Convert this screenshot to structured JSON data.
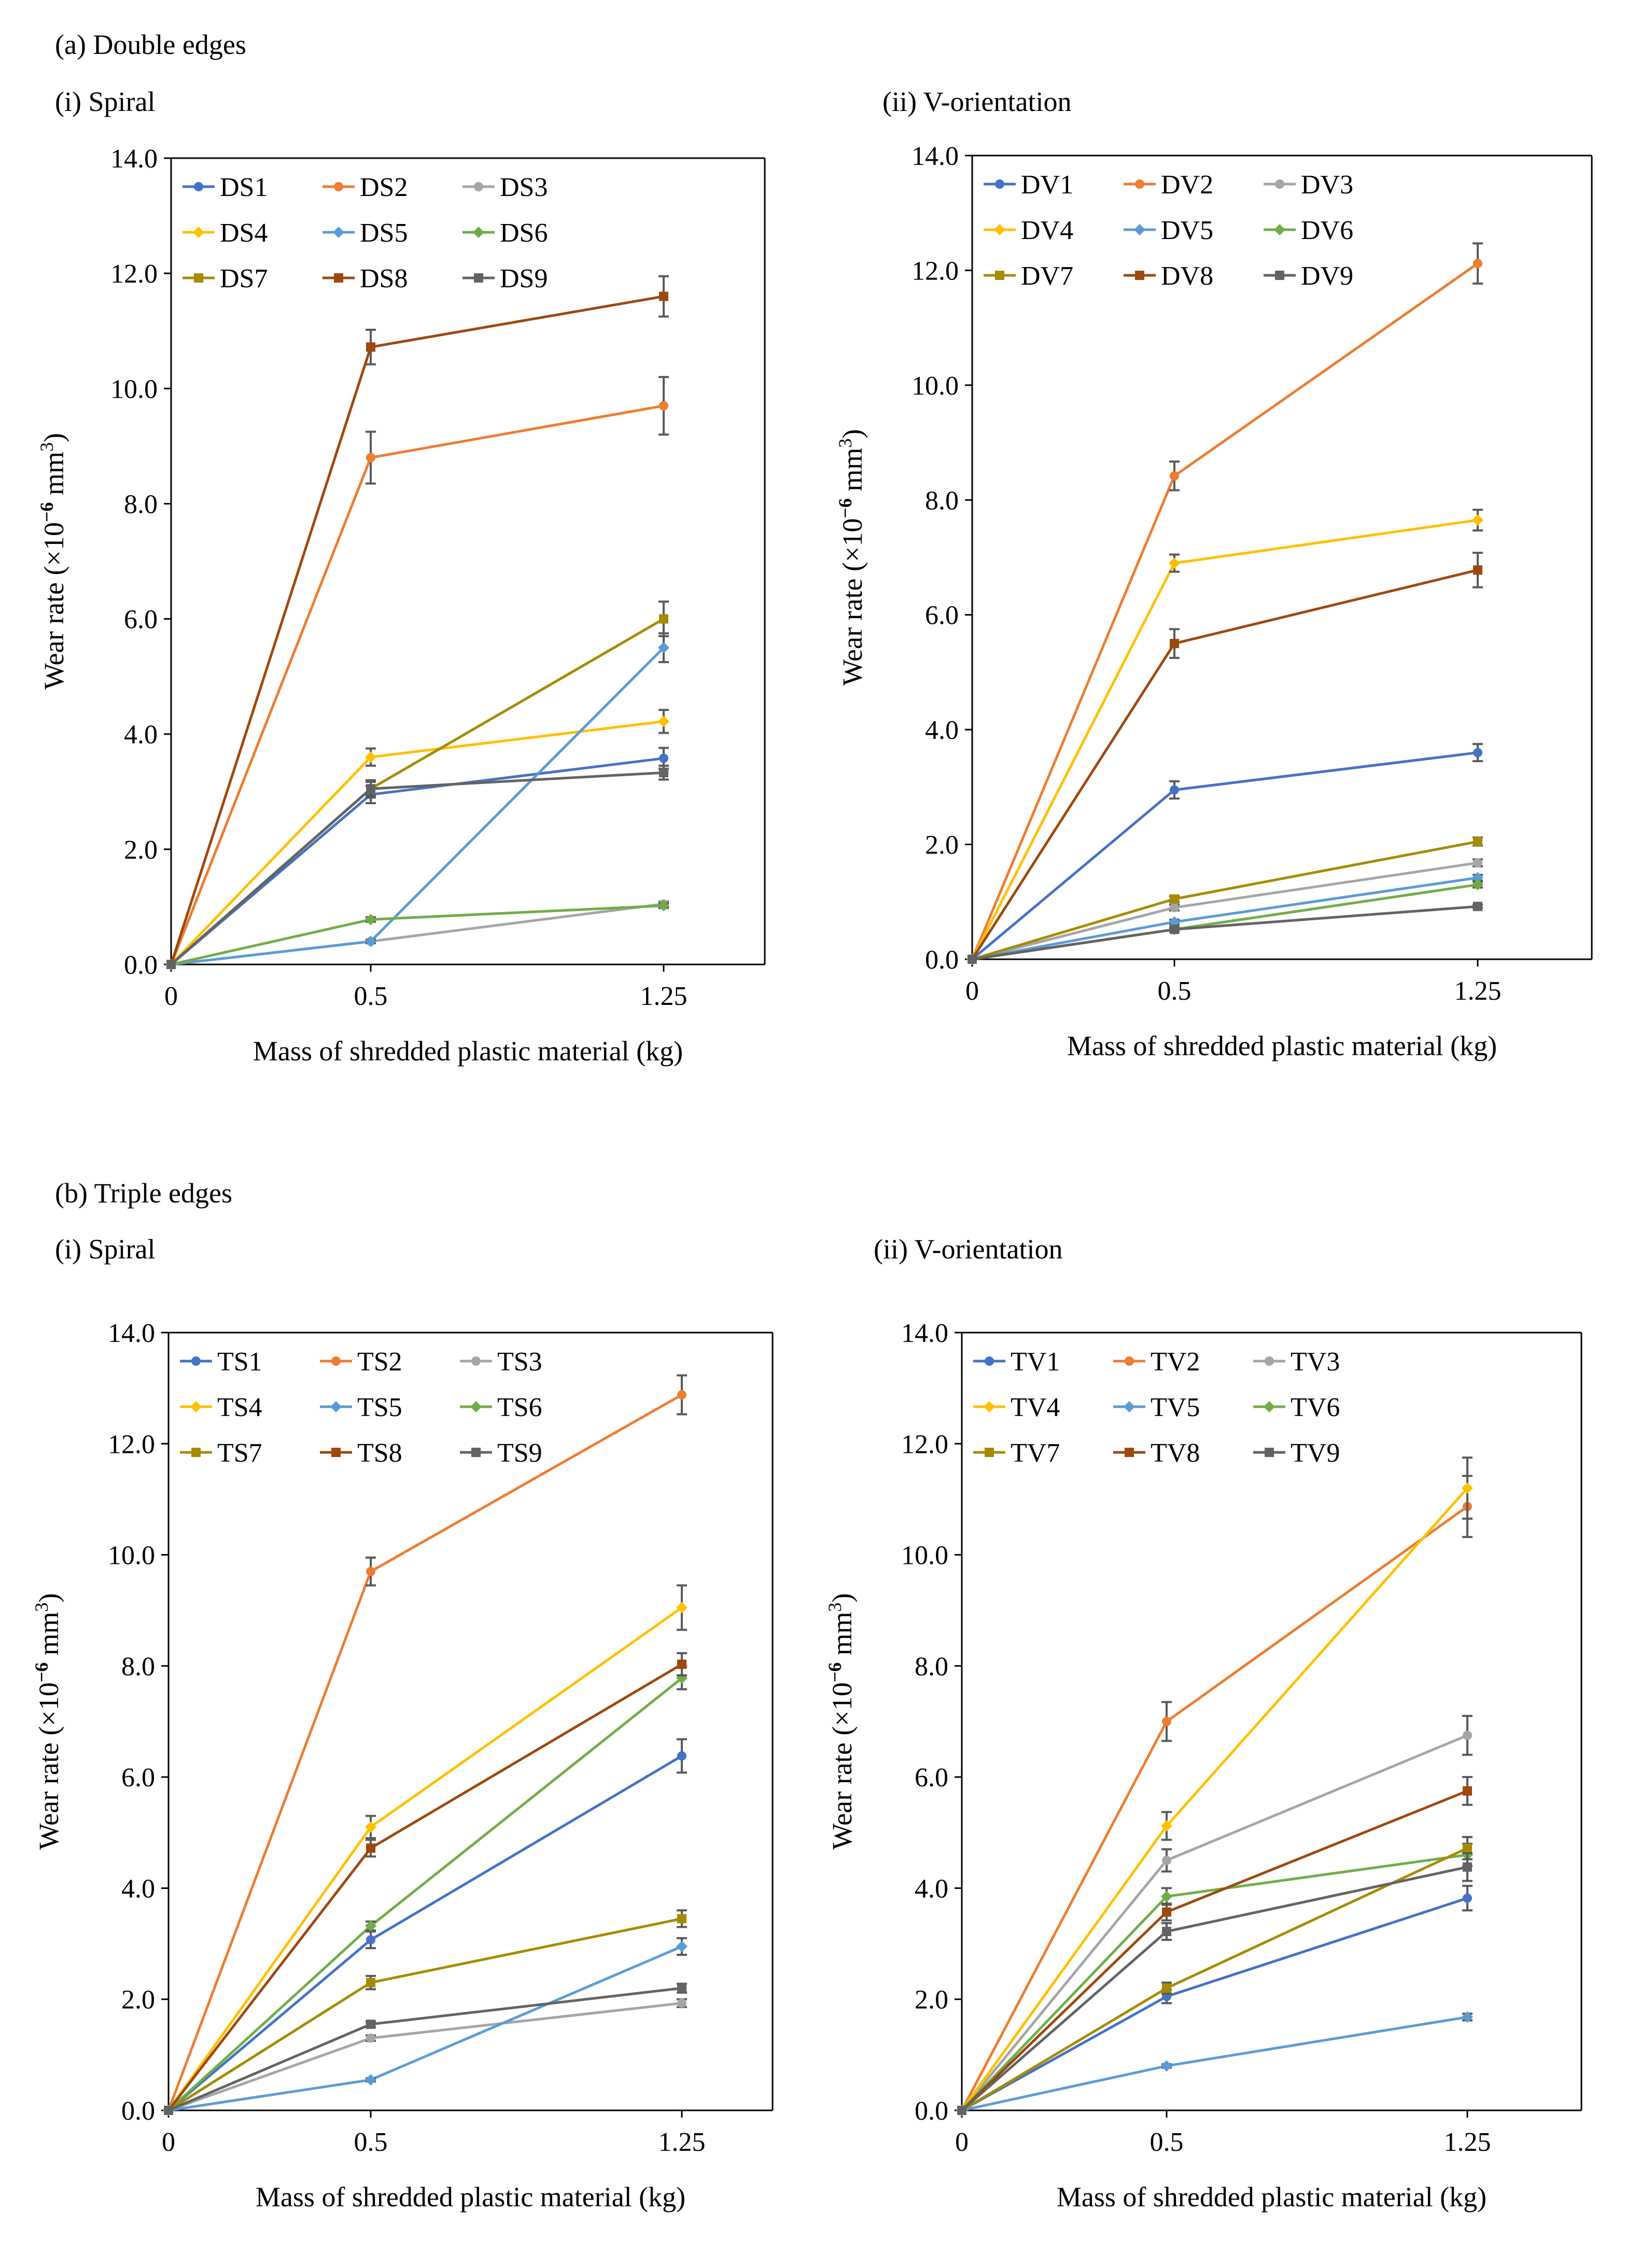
{
  "sections": {
    "a": "(a) Double edges",
    "b": "(b) Triple edges"
  },
  "panels": {
    "a_i": "(i) Spiral",
    "a_ii": "(ii) V-orientation",
    "b_i": "(i) Spiral",
    "b_ii": "(ii) V-orientation"
  },
  "colors": {
    "s1": "#4472C4",
    "s2": "#ED7D31",
    "s3": "#A5A5A5",
    "s4": "#FFC000",
    "s5": "#5B9BD5",
    "s6": "#70AD47",
    "s7": "#A58B00",
    "s8": "#9E480E",
    "s9": "#636363",
    "errorbar": "#595959"
  },
  "chart_data": [
    {
      "id": "ds",
      "type": "line",
      "categories": [
        "0",
        "0.5",
        "1.25"
      ],
      "xlabel": "Mass of shredded plastic material (kg)",
      "ylabel": "Wear rate (×10",
      "ylabel_sup": "−6",
      "ylabel_unit": " mm",
      "ylabel_sup2": "3",
      "ylabel_end": ")",
      "ylim": [
        0,
        14
      ],
      "yticks": [
        "0.0",
        "2.0",
        "4.0",
        "6.0",
        "8.0",
        "10.0",
        "12.0",
        "14.0"
      ],
      "legend_position": "top-left",
      "series": [
        {
          "name": "DS1",
          "values": [
            0,
            2.95,
            3.58
          ],
          "errors": [
            0,
            0.15,
            0.18
          ],
          "marker": "circle"
        },
        {
          "name": "DS2",
          "values": [
            0,
            8.8,
            9.7
          ],
          "errors": [
            0,
            0.45,
            0.5
          ],
          "marker": "circle"
        },
        {
          "name": "DS3",
          "values": [
            0,
            0.4,
            1.05
          ],
          "errors": [
            0,
            0.03,
            0.04
          ],
          "marker": "circle"
        },
        {
          "name": "DS4",
          "values": [
            0,
            3.6,
            4.22
          ],
          "errors": [
            0,
            0.15,
            0.2
          ],
          "marker": "diamond"
        },
        {
          "name": "DS5",
          "values": [
            0,
            0.4,
            5.5
          ],
          "errors": [
            0,
            0.03,
            0.25
          ],
          "marker": "diamond"
        },
        {
          "name": "DS6",
          "values": [
            0,
            0.78,
            1.02
          ],
          "errors": [
            0,
            0.04,
            0.04
          ],
          "marker": "diamond"
        },
        {
          "name": "DS7",
          "values": [
            0,
            3.05,
            6.0
          ],
          "errors": [
            0,
            0.15,
            0.3
          ],
          "marker": "square"
        },
        {
          "name": "DS8",
          "values": [
            0,
            10.72,
            11.6
          ],
          "errors": [
            0,
            0.3,
            0.35
          ],
          "marker": "square"
        },
        {
          "name": "DS9",
          "values": [
            0,
            3.05,
            3.33
          ],
          "errors": [
            0,
            0.12,
            0.12
          ],
          "marker": "square"
        }
      ]
    },
    {
      "id": "dv",
      "type": "line",
      "categories": [
        "0",
        "0.5",
        "1.25"
      ],
      "xlabel": "Mass of shredded plastic material (kg)",
      "ylabel": "Wear rate (×10",
      "ylabel_sup": "−6",
      "ylabel_unit": " mm",
      "ylabel_sup2": "3",
      "ylabel_end": ")",
      "ylim": [
        0,
        14
      ],
      "yticks": [
        "0.0",
        "2.0",
        "4.0",
        "6.0",
        "8.0",
        "10.0",
        "12.0",
        "14.0"
      ],
      "legend_position": "top-left",
      "series": [
        {
          "name": "DV1",
          "values": [
            0,
            2.95,
            3.6
          ],
          "errors": [
            0,
            0.15,
            0.15
          ],
          "marker": "circle"
        },
        {
          "name": "DV2",
          "values": [
            0,
            8.42,
            12.12
          ],
          "errors": [
            0,
            0.25,
            0.35
          ],
          "marker": "circle"
        },
        {
          "name": "DV3",
          "values": [
            0,
            0.9,
            1.68
          ],
          "errors": [
            0,
            0.05,
            0.06
          ],
          "marker": "circle"
        },
        {
          "name": "DV4",
          "values": [
            0,
            6.9,
            7.65
          ],
          "errors": [
            0,
            0.15,
            0.18
          ],
          "marker": "diamond"
        },
        {
          "name": "DV5",
          "values": [
            0,
            0.65,
            1.42
          ],
          "errors": [
            0,
            0.04,
            0.05
          ],
          "marker": "diamond"
        },
        {
          "name": "DV6",
          "values": [
            0,
            0.52,
            1.3
          ],
          "errors": [
            0,
            0.04,
            0.05
          ],
          "marker": "diamond"
        },
        {
          "name": "DV7",
          "values": [
            0,
            1.05,
            2.05
          ],
          "errors": [
            0,
            0.05,
            0.07
          ],
          "marker": "square"
        },
        {
          "name": "DV8",
          "values": [
            0,
            5.5,
            6.78
          ],
          "errors": [
            0,
            0.25,
            0.3
          ],
          "marker": "square"
        },
        {
          "name": "DV9",
          "values": [
            0,
            0.52,
            0.92
          ],
          "errors": [
            0,
            0.03,
            0.03
          ],
          "marker": "square"
        }
      ]
    },
    {
      "id": "ts",
      "type": "line",
      "categories": [
        "0",
        "0.5",
        "1.25"
      ],
      "xlabel": "Mass of shredded plastic material (kg)",
      "ylabel": "Wear rate (×10",
      "ylabel_sup": "−6",
      "ylabel_unit": " mm",
      "ylabel_sup2": "3",
      "ylabel_end": ")",
      "ylim": [
        0,
        14
      ],
      "yticks": [
        "0.0",
        "2.0",
        "4.0",
        "6.0",
        "8.0",
        "10.0",
        "12.0",
        "14.0"
      ],
      "legend_position": "top-left",
      "series": [
        {
          "name": "TS1",
          "values": [
            0,
            3.07,
            6.38
          ],
          "errors": [
            0,
            0.15,
            0.3
          ],
          "marker": "circle"
        },
        {
          "name": "TS2",
          "values": [
            0,
            9.7,
            12.88
          ],
          "errors": [
            0,
            0.25,
            0.35
          ],
          "marker": "circle"
        },
        {
          "name": "TS3",
          "values": [
            0,
            1.3,
            1.93
          ],
          "errors": [
            0,
            0.05,
            0.07
          ],
          "marker": "circle"
        },
        {
          "name": "TS4",
          "values": [
            0,
            5.1,
            9.05
          ],
          "errors": [
            0,
            0.2,
            0.4
          ],
          "marker": "diamond"
        },
        {
          "name": "TS5",
          "values": [
            0,
            0.55,
            2.95
          ],
          "errors": [
            0,
            0.03,
            0.15
          ],
          "marker": "diamond"
        },
        {
          "name": "TS6",
          "values": [
            0,
            3.32,
            7.78
          ],
          "errors": [
            0,
            0.08,
            0.2
          ],
          "marker": "diamond"
        },
        {
          "name": "TS7",
          "values": [
            0,
            2.3,
            3.45
          ],
          "errors": [
            0,
            0.12,
            0.15
          ],
          "marker": "square"
        },
        {
          "name": "TS8",
          "values": [
            0,
            4.72,
            8.03
          ],
          "errors": [
            0,
            0.15,
            0.2
          ],
          "marker": "square"
        },
        {
          "name": "TS9",
          "values": [
            0,
            1.55,
            2.2
          ],
          "errors": [
            0,
            0.05,
            0.08
          ],
          "marker": "square"
        }
      ]
    },
    {
      "id": "tv",
      "type": "line",
      "categories": [
        "0",
        "0.5",
        "1.25"
      ],
      "xlabel": "Mass of shredded plastic material (kg)",
      "ylabel": "Wear rate (×10",
      "ylabel_sup": "−6",
      "ylabel_unit": " mm",
      "ylabel_sup2": "3",
      "ylabel_end": ")",
      "ylim": [
        0,
        14
      ],
      "yticks": [
        "0.0",
        "2.0",
        "4.0",
        "6.0",
        "8.0",
        "10.0",
        "12.0",
        "14.0"
      ],
      "legend_position": "top-left",
      "series": [
        {
          "name": "TV1",
          "values": [
            0,
            2.05,
            3.82
          ],
          "errors": [
            0,
            0.12,
            0.22
          ],
          "marker": "circle"
        },
        {
          "name": "TV2",
          "values": [
            0,
            7.0,
            10.87
          ],
          "errors": [
            0,
            0.35,
            0.55
          ],
          "marker": "circle"
        },
        {
          "name": "TV3",
          "values": [
            0,
            4.5,
            6.75
          ],
          "errors": [
            0,
            0.2,
            0.35
          ],
          "marker": "circle"
        },
        {
          "name": "TV4",
          "values": [
            0,
            5.12,
            11.2
          ],
          "errors": [
            0,
            0.25,
            0.55
          ],
          "marker": "diamond"
        },
        {
          "name": "TV5",
          "values": [
            0,
            0.8,
            1.68
          ],
          "errors": [
            0,
            0.03,
            0.06
          ],
          "marker": "diamond"
        },
        {
          "name": "TV6",
          "values": [
            0,
            3.85,
            4.6
          ],
          "errors": [
            0,
            0.15,
            0.2
          ],
          "marker": "diamond"
        },
        {
          "name": "TV7",
          "values": [
            0,
            2.2,
            4.72
          ],
          "errors": [
            0,
            0.1,
            0.2
          ],
          "marker": "square"
        },
        {
          "name": "TV8",
          "values": [
            0,
            3.57,
            5.75
          ],
          "errors": [
            0,
            0.15,
            0.25
          ],
          "marker": "square"
        },
        {
          "name": "TV9",
          "values": [
            0,
            3.22,
            4.38
          ],
          "errors": [
            0,
            0.15,
            0.25
          ],
          "marker": "square"
        }
      ]
    }
  ]
}
